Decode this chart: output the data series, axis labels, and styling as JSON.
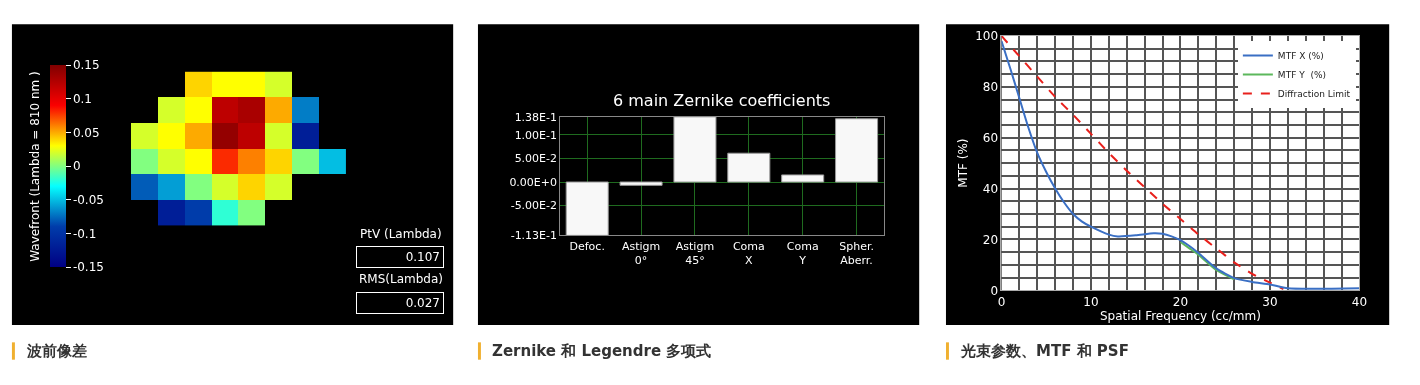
{
  "chart_data": [
    {
      "type": "heatmap",
      "categories": [
        null,
        null,
        null,
        null,
        null,
        null,
        null,
        null
      ],
      "y_categories": [
        null,
        null,
        null,
        null,
        null,
        null
      ],
      "cells": [
        [
          null,
          null,
          0.04,
          0.03,
          0.03,
          0.02,
          null,
          null
        ],
        [
          null,
          0.02,
          0.03,
          0.12,
          0.13,
          0.05,
          -0.07,
          null
        ],
        [
          0.02,
          0.03,
          0.05,
          0.14,
          0.12,
          0.02,
          -0.12,
          null
        ],
        [
          0.0,
          0.02,
          0.03,
          0.08,
          0.06,
          0.04,
          0.0,
          -0.05
        ],
        [
          -0.08,
          -0.06,
          0.0,
          0.02,
          0.04,
          0.02,
          null,
          null
        ],
        [
          null,
          -0.12,
          -0.09,
          -0.02,
          0.0,
          null,
          null,
          null
        ]
      ],
      "clabel": "Wavefront (Lambda = 810 nm )",
      "clim": [
        -0.15,
        0.15
      ],
      "cticks": [
        -0.15,
        -0.1,
        -0.05,
        0,
        0.05,
        0.1,
        0.15
      ],
      "annotations": [
        "PtV (Lambda)",
        "0.107",
        "RMS(Lambda)",
        "0.027",
        "波前像差"
      ]
    },
    {
      "type": "bar",
      "title": "6 main Zernike coefficients",
      "categories": [
        "Defoc.",
        "Astigm\n0°",
        "Astigm\n45°",
        "Coma\nX",
        "Coma\nY",
        "Spher.\nAberr."
      ],
      "values": [
        -0.113,
        -0.007,
        0.138,
        0.061,
        0.015,
        0.134
      ],
      "color": "#f8f8f8",
      "ylim": [
        -0.113,
        0.138
      ],
      "yticks": [
        {
          "value": -0.113,
          "label": "-1.13E-1"
        },
        {
          "value": -0.05,
          "label": "-5.00E-2"
        },
        {
          "value": 0,
          "label": "0.00E+0"
        },
        {
          "value": 0.05,
          "label": "5.00E-2"
        },
        {
          "value": 0.1,
          "label": "1.00E-1"
        },
        {
          "value": 0.138,
          "label": "1.38E-1"
        }
      ],
      "grid": true,
      "annotations": [
        "Zernike 和 Legendre 多项式"
      ]
    },
    {
      "type": "line",
      "xlabel": "Spatial Frequency (cc/mm)",
      "ylabel": "MTF (%)",
      "xlim": [
        0,
        40
      ],
      "ylim": [
        0,
        100
      ],
      "xticks": [
        0,
        {
          "value": 2,
          "label": null
        },
        {
          "value": 4,
          "label": null
        },
        {
          "value": 6,
          "label": null
        },
        {
          "value": 8,
          "label": null
        },
        10,
        {
          "value": 12,
          "label": null
        },
        {
          "value": 14,
          "label": null
        },
        {
          "value": 16,
          "label": null
        },
        {
          "value": 18,
          "label": null
        },
        20,
        {
          "value": 22,
          "label": null
        },
        {
          "value": 24,
          "label": null
        },
        {
          "value": 26,
          "label": null
        },
        {
          "value": 28,
          "label": null
        },
        30,
        {
          "value": 32,
          "label": null
        },
        {
          "value": 34,
          "label": null
        },
        {
          "value": 36,
          "label": null
        },
        {
          "value": 38,
          "label": null
        },
        40
      ],
      "yticks": [
        0,
        {
          "value": 5,
          "label": null
        },
        {
          "value": 10,
          "label": null
        },
        {
          "value": 15,
          "label": null
        },
        20,
        {
          "value": 25,
          "label": null
        },
        {
          "value": 30,
          "label": null
        },
        {
          "value": 35,
          "label": null
        },
        40,
        {
          "value": 45,
          "label": null
        },
        {
          "value": 50,
          "label": null
        },
        {
          "value": 55,
          "label": null
        },
        60,
        {
          "value": 65,
          "label": null
        },
        {
          "value": 70,
          "label": null
        },
        {
          "value": 75,
          "label": null
        },
        80,
        {
          "value": 85,
          "label": null
        },
        {
          "value": 90,
          "label": null
        },
        {
          "value": 95,
          "label": null
        },
        100
      ],
      "grid": true,
      "legend": "top right",
      "marker": "none",
      "series": [
        {
          "name": "MTF X (%)",
          "color": "#3a6fc4",
          "line_style": "solid",
          "x": [
            0,
            1,
            2,
            3,
            4,
            5,
            6,
            7,
            8,
            9,
            10,
            12,
            13,
            15,
            17,
            18,
            19,
            20,
            21,
            22,
            24,
            26,
            28,
            30,
            32,
            40
          ],
          "values": [
            98,
            87,
            75.5,
            64,
            54,
            46.5,
            40,
            34.5,
            30,
            27,
            25,
            21.9,
            21.2,
            21.6,
            22.4,
            22.2,
            21.2,
            19.7,
            17.4,
            14.7,
            8.6,
            4.8,
            3.3,
            2.3,
            0.8,
            0.8
          ]
        },
        {
          "name": "MTF Y  (%)",
          "color": "#5cb85c",
          "line_style": "solid",
          "x": [
            20,
            21,
            22,
            24,
            26
          ],
          "values": [
            19,
            16.5,
            14,
            8,
            4.3
          ]
        },
        {
          "name": "Diffraction Limit",
          "color": "#e8201c",
          "line_style": "dashed",
          "x": [
            0,
            2,
            4,
            6,
            8,
            10,
            12,
            14,
            16,
            18,
            20,
            22,
            24,
            26,
            28,
            30,
            31.5
          ],
          "values": [
            100,
            92,
            84,
            76,
            69,
            61.5,
            54,
            47,
            40.5,
            34,
            28,
            22,
            16.5,
            11,
            6.5,
            3,
            0.5
          ]
        }
      ],
      "annotations": [
        "光束参数、MTF 和 PSF"
      ]
    }
  ]
}
